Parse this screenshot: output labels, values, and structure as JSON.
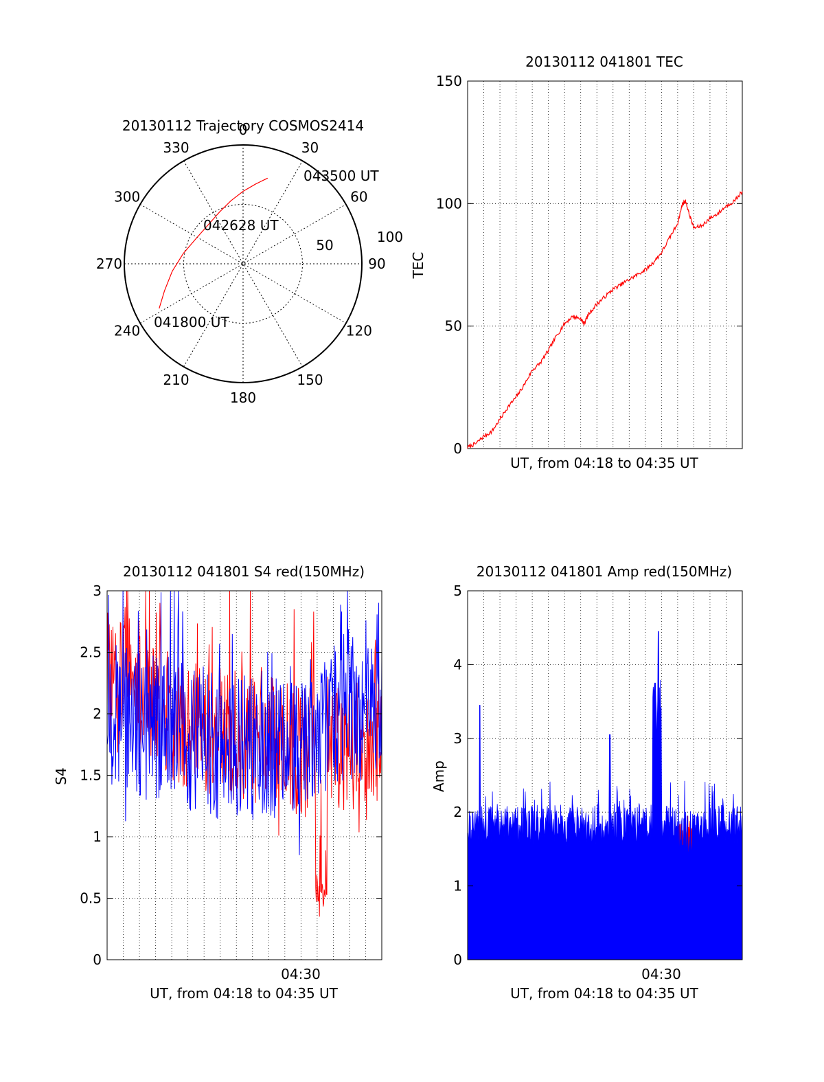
{
  "chart_data": [
    {
      "type": "polar",
      "title": "20130112 Trajectory COSMOS2414",
      "angle_labels": [
        "0",
        "30",
        "60",
        "90",
        "120",
        "150",
        "180",
        "210",
        "240",
        "270",
        "300",
        "330"
      ],
      "radial_labels": [
        "50",
        "100"
      ],
      "trajectory": {
        "color": "#ff0000",
        "points": [
          {
            "az": 242,
            "r": 80
          },
          {
            "az": 251,
            "r": 70
          },
          {
            "az": 264,
            "r": 60
          },
          {
            "az": 280,
            "r": 51
          },
          {
            "az": 298,
            "r": 45
          },
          {
            "az": 318,
            "r": 44
          },
          {
            "az": 336,
            "r": 48
          },
          {
            "az": 349,
            "r": 54
          },
          {
            "az": 360,
            "r": 61
          },
          {
            "az": 369,
            "r": 68
          },
          {
            "az": 376,
            "r": 75
          }
        ]
      },
      "annotations": [
        "043500 UT",
        "042628 UT",
        "041800 UT"
      ]
    },
    {
      "type": "line",
      "title": "20130112 041801 TEC",
      "xlabel": "UT, from 04:18 to 04:35 UT",
      "ylabel": "TEC",
      "xlim": [
        0,
        17
      ],
      "ylim": [
        0,
        150
      ],
      "yticks": [
        "0",
        "50",
        "100",
        "150"
      ],
      "grid": true,
      "series": [
        {
          "color": "#ff0000",
          "x": [
            0,
            0.5,
            1.0,
            1.5,
            2.0,
            2.5,
            3.0,
            3.5,
            4.0,
            4.5,
            5.0,
            5.5,
            6.0,
            6.5,
            7.0,
            7.2,
            7.5,
            8.0,
            8.5,
            9.0,
            9.5,
            10.0,
            10.5,
            11.0,
            11.5,
            12.0,
            12.5,
            13.0,
            13.3,
            13.5,
            13.7,
            14.0,
            14.5,
            15.0,
            15.5,
            16.0,
            16.5,
            17.0
          ],
          "y": [
            0.5,
            2,
            5,
            7,
            12,
            17,
            21,
            26,
            32,
            35,
            40,
            46,
            51,
            54,
            53,
            51,
            55,
            59,
            62,
            65,
            67,
            69,
            71,
            73,
            76,
            80,
            86,
            92,
            100,
            101,
            96,
            90,
            91,
            94,
            96,
            99,
            101,
            105
          ]
        }
      ]
    },
    {
      "type": "line",
      "title": "20130112 041801 S4 red(150MHz)",
      "xlabel": "UT, from 04:18 to 04:35 UT",
      "ylabel": "S4",
      "xlim": [
        0,
        17
      ],
      "ylim": [
        0,
        3
      ],
      "yticks": [
        "0",
        "0.5",
        "1",
        "1.5",
        "2",
        "2.5",
        "3"
      ],
      "xticks": [
        {
          "x": 12,
          "label": "04:30"
        }
      ],
      "grid": true,
      "series": [
        {
          "color": "#ff0000",
          "mean": [
            2.3,
            2.25,
            2.15,
            2.05,
            1.95,
            1.9,
            1.85,
            1.8,
            1.8,
            1.75,
            1.75,
            1.7,
            1.7,
            1.8,
            1.75,
            1.75,
            1.8,
            1.8
          ],
          "amp": 0.55,
          "dip": {
            "x": [
              12.9,
              13.6
            ],
            "y": 0.35
          }
        },
        {
          "color": "#0000ff",
          "mean": [
            2.0,
            1.95,
            1.9,
            1.9,
            1.85,
            1.8,
            1.75,
            1.75,
            1.75,
            1.75,
            1.75,
            1.8,
            1.85,
            1.95,
            2.05,
            2.05,
            2.05,
            2.05
          ],
          "amp": 0.6
        }
      ]
    },
    {
      "type": "area",
      "title": "20130112 041801 Amp red(150MHz)",
      "xlabel": "UT, from 04:18 to 04:35 UT",
      "ylabel": "Amp",
      "xlim": [
        0,
        17
      ],
      "ylim": [
        0,
        5
      ],
      "yticks": [
        "0",
        "1",
        "2",
        "3",
        "4",
        "5"
      ],
      "xticks": [
        {
          "x": 12,
          "label": "04:30"
        }
      ],
      "grid": true,
      "series": [
        {
          "color": "#ff0000",
          "base": 1.5,
          "top": 1.95,
          "x": [
            13.0,
            13.9
          ]
        },
        {
          "color": "#0000ff",
          "base": 1.55,
          "spread": 0.55,
          "peaks": [
            {
              "x": 0.75,
              "y": 3.45
            },
            {
              "x": 8.8,
              "y": 3.05
            },
            {
              "x": 11.8,
              "y": 4.45
            },
            {
              "x": 11.6,
              "y": 3.75
            }
          ]
        }
      ]
    }
  ]
}
